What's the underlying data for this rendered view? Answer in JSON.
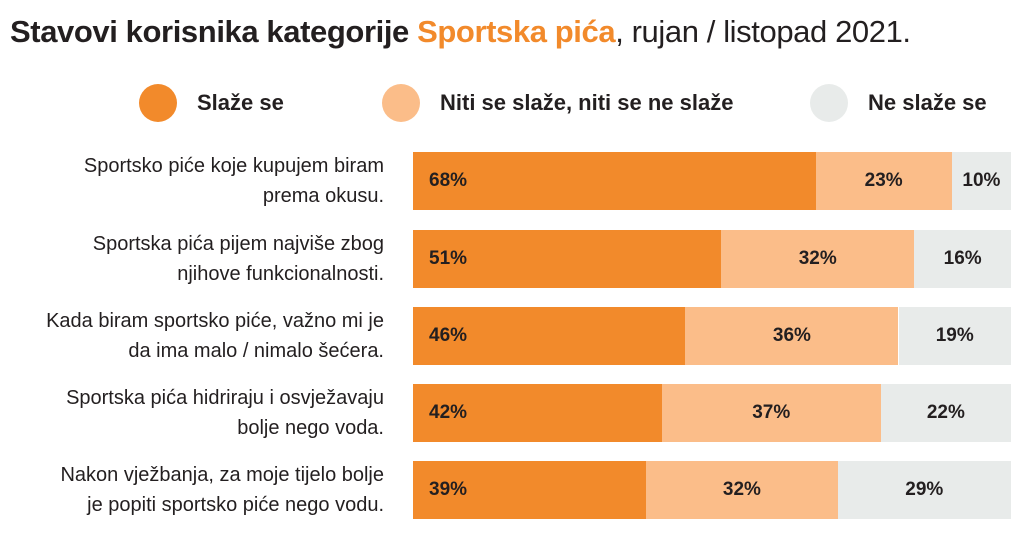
{
  "title": {
    "part1": "Stavovi korisnika kategorije ",
    "part2": "Sportska pića",
    "part3": ", rujan / listopad 2021."
  },
  "legend": [
    {
      "label": "Slaže se",
      "color": "#f28a2b"
    },
    {
      "label": "Niti se slaže, niti se ne slaže",
      "color": "#fbbd89"
    },
    {
      "label": "Ne slaže se",
      "color": "#e8ebea"
    }
  ],
  "chart_data": {
    "type": "bar",
    "orientation": "horizontal",
    "stacked": "100%",
    "categories": [
      [
        "Sportsko piće koje kupujem biram",
        "prema okusu."
      ],
      [
        "Sportska pića pijem najviše zbog",
        "njihove funkcionalnosti."
      ],
      [
        "Kada biram sportsko piće, važno mi je",
        "da ima malo / nimalo šećera."
      ],
      [
        "Sportska pića hidriraju i osvježavaju",
        "bolje nego voda."
      ],
      [
        "Nakon vježbanja, za moje tijelo bolje",
        "je popiti sportsko piće nego vodu."
      ]
    ],
    "series": [
      {
        "name": "Slaže se",
        "values": [
          68,
          51,
          46,
          42,
          39
        ],
        "labels": [
          "68%",
          "51%",
          "46%",
          "42%",
          "39%"
        ],
        "color": "#f28a2b"
      },
      {
        "name": "Niti se slaže, niti se ne slaže",
        "values": [
          23,
          32,
          36,
          37,
          32
        ],
        "labels": [
          "23%",
          "32%",
          "36%",
          "37%",
          "32%"
        ],
        "color": "#fbbd89"
      },
      {
        "name": "Ne slaže se",
        "values": [
          10,
          16,
          19,
          22,
          29
        ],
        "labels": [
          "10%",
          "16%",
          "19%",
          "22%",
          "29%"
        ],
        "color": "#e8ebea"
      }
    ],
    "legend_position": "top"
  }
}
